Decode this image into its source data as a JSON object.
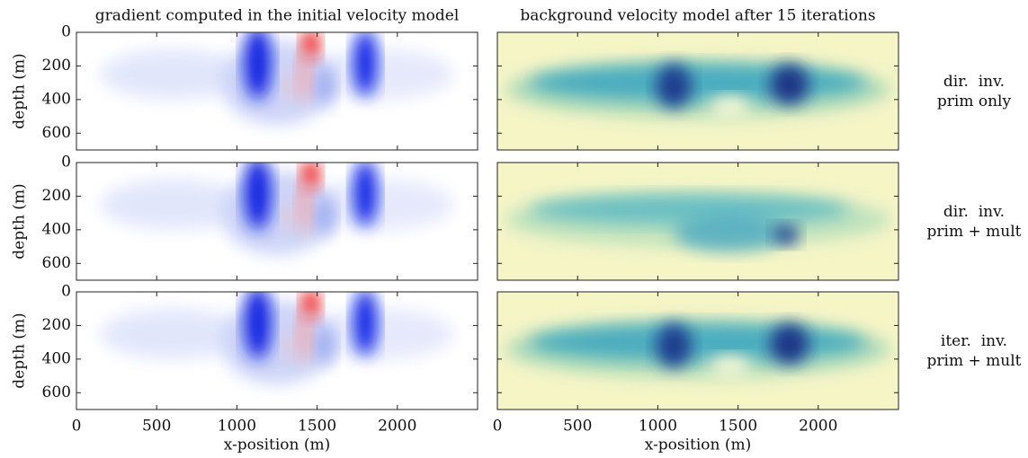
{
  "chart_data": [
    {
      "type": "heatmap",
      "colormap": "blue-white-red",
      "title": "gradient computed in the initial velocity model",
      "ylabel": "depth (m)",
      "xlim": [
        0,
        2500
      ],
      "ylim": [
        0,
        700
      ],
      "y_inverted": true,
      "xticks": [
        0,
        500,
        1000,
        1500,
        2000
      ],
      "yticks": [
        0,
        200,
        400,
        600
      ],
      "xtick_labels": false,
      "ytick_labels": true
    },
    {
      "type": "heatmap",
      "colormap": "yellow-green-blue",
      "title": "background velocity model after 15 iterations",
      "annotation": [
        "dir.  inv.",
        "prim only"
      ],
      "xlim": [
        0,
        2500
      ],
      "ylim": [
        0,
        700
      ],
      "y_inverted": true,
      "xticks": [
        0,
        500,
        1000,
        1500,
        2000
      ],
      "yticks": [
        0,
        200,
        400,
        600
      ],
      "xtick_labels": false,
      "ytick_labels": false
    },
    {
      "type": "heatmap",
      "colormap": "blue-white-red",
      "ylabel": "depth (m)",
      "xlim": [
        0,
        2500
      ],
      "ylim": [
        0,
        700
      ],
      "y_inverted": true,
      "xticks": [
        0,
        500,
        1000,
        1500,
        2000
      ],
      "yticks": [
        0,
        200,
        400,
        600
      ],
      "xtick_labels": false,
      "ytick_labels": true
    },
    {
      "type": "heatmap",
      "colormap": "yellow-green-blue",
      "annotation": [
        "dir.  inv.",
        "prim + mult"
      ],
      "xlim": [
        0,
        2500
      ],
      "ylim": [
        0,
        700
      ],
      "y_inverted": true,
      "xticks": [
        0,
        500,
        1000,
        1500,
        2000
      ],
      "yticks": [
        0,
        200,
        400,
        600
      ],
      "xtick_labels": false,
      "ytick_labels": false
    },
    {
      "type": "heatmap",
      "colormap": "blue-white-red",
      "ylabel": "depth (m)",
      "xlabel": "x-position (m)",
      "xlim": [
        0,
        2500
      ],
      "ylim": [
        0,
        700
      ],
      "y_inverted": true,
      "xticks": [
        0,
        500,
        1000,
        1500,
        2000
      ],
      "yticks": [
        0,
        200,
        400,
        600
      ],
      "xtick_labels": true,
      "ytick_labels": true
    },
    {
      "type": "heatmap",
      "colormap": "yellow-green-blue",
      "xlabel": "x-position (m)",
      "annotation": [
        "iter.  inv.",
        "prim + mult"
      ],
      "xlim": [
        0,
        2500
      ],
      "ylim": [
        0,
        700
      ],
      "y_inverted": true,
      "xticks": [
        0,
        500,
        1000,
        1500,
        2000
      ],
      "yticks": [
        0,
        200,
        400,
        600
      ],
      "xtick_labels": true,
      "ytick_labels": false
    }
  ]
}
